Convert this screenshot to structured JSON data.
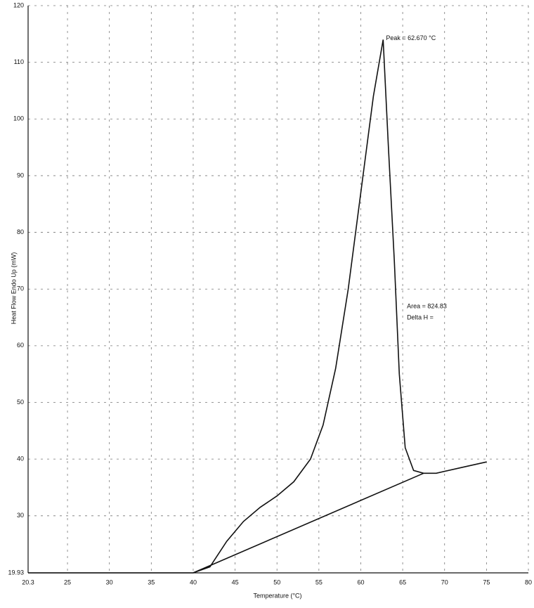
{
  "chart_data": {
    "type": "line",
    "x_label": "Temperature (°C)",
    "y_label": "Heat Flow Endo Up (mW)",
    "annotations": [
      "Peak = 62.670 °C",
      "Area = 824.83",
      "Delta H ="
    ],
    "xlim": [
      20.3,
      80
    ],
    "ylim": [
      19.93,
      120
    ],
    "xticks": [
      20.3,
      25,
      30,
      35,
      40,
      45,
      50,
      55,
      60,
      65,
      70,
      75,
      80
    ],
    "yticks": [
      19.93,
      30,
      40,
      50,
      60,
      70,
      80,
      90,
      100,
      110,
      120
    ],
    "grid": true,
    "series": [
      {
        "color": "#111111",
        "x": [
          20.3,
          30,
          40,
          42,
          44,
          46,
          48,
          50,
          52,
          54,
          55.5,
          57,
          58.5,
          60,
          61.5,
          62.67,
          63.3,
          64.0,
          64.6,
          65.3,
          66.3,
          67.5,
          69,
          72,
          75
        ],
        "values": [
          19.93,
          19.93,
          19.93,
          21,
          25.5,
          29,
          31.5,
          33.5,
          36,
          40,
          46,
          56,
          70,
          87,
          104,
          114,
          95,
          75,
          55,
          42,
          38,
          37.5,
          37.5,
          38.5,
          39.5
        ]
      },
      {
        "color": "#111111",
        "x": [
          40,
          67.5
        ],
        "values": [
          19.93,
          37.5
        ]
      }
    ]
  }
}
